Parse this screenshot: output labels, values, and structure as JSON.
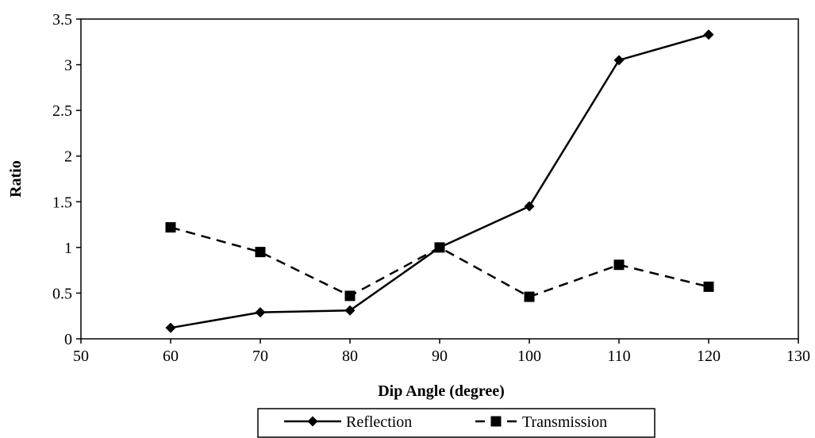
{
  "chart_data": {
    "type": "line",
    "xlabel": "Dip Angle  (degree)",
    "ylabel": "Ratio",
    "xlim": [
      50,
      130
    ],
    "ylim": [
      0,
      3.5
    ],
    "xticks": [
      50,
      60,
      70,
      80,
      90,
      100,
      110,
      120,
      130
    ],
    "yticks": [
      0,
      0.5,
      1,
      1.5,
      2,
      2.5,
      3,
      3.5
    ],
    "xtick_labels": [
      "50",
      "60",
      "70",
      "80",
      "90",
      "100",
      "110",
      "120",
      "130"
    ],
    "ytick_labels": [
      "0",
      "0.5",
      "1",
      "1.5",
      "2",
      "2.5",
      "3",
      "3.5"
    ],
    "grid": false,
    "legend_position": "bottom",
    "series": [
      {
        "name": "Reflection",
        "x": [
          60,
          70,
          80,
          90,
          100,
          110,
          120
        ],
        "y": [
          0.12,
          0.29,
          0.31,
          1.0,
          1.45,
          3.05,
          3.33
        ],
        "line_style": "solid",
        "marker": "diamond",
        "color": "#000000"
      },
      {
        "name": "Transmission",
        "x": [
          60,
          70,
          80,
          90,
          100,
          110,
          120
        ],
        "y": [
          1.22,
          0.95,
          0.47,
          1.0,
          0.46,
          0.81,
          0.57
        ],
        "line_style": "dashed",
        "marker": "square",
        "color": "#000000"
      }
    ]
  }
}
